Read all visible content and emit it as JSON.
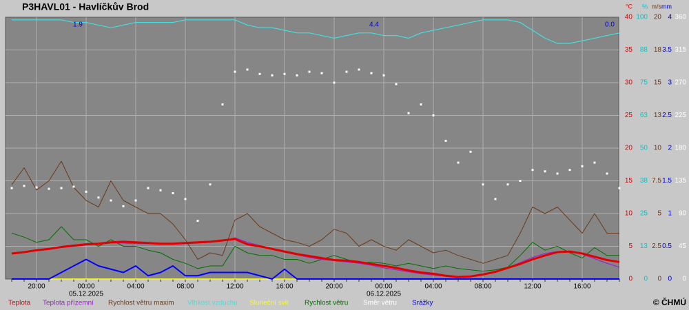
{
  "chart_data": {
    "type": "line",
    "title": "P3HAVL01 - Havlíčkův Brod",
    "credit": "© ČHMÚ",
    "grid": true,
    "categories": [
      null,
      null,
      "20:00",
      null,
      null,
      null,
      "00:00",
      null,
      null,
      null,
      "04:00",
      null,
      null,
      null,
      "08:00",
      null,
      null,
      null,
      "12:00",
      null,
      null,
      null,
      "16:00",
      null,
      null,
      null,
      "20:00",
      null,
      null,
      null,
      "00:00",
      null,
      null,
      null,
      "04:00",
      null,
      null,
      null,
      "08:00",
      null,
      null,
      null,
      "12:00",
      null,
      null,
      null,
      "16:00",
      null,
      null,
      null
    ],
    "x_dates": [
      null,
      null,
      null,
      null,
      null,
      null,
      "05.12.2025",
      null,
      null,
      null,
      null,
      null,
      null,
      null,
      null,
      null,
      null,
      null,
      null,
      null,
      null,
      null,
      null,
      null,
      null,
      null,
      null,
      null,
      null,
      null,
      "06.12.2025",
      null,
      null,
      null,
      null,
      null,
      null,
      null,
      null,
      null,
      null,
      null,
      null,
      null,
      null,
      null,
      null,
      null,
      null,
      null
    ],
    "annotations": [
      "1.9",
      "4.4",
      "0.0"
    ],
    "axes": [
      {
        "label": "°C",
        "color": "#e00000",
        "lim": [
          0,
          40
        ],
        "ticks": [
          0,
          5,
          10,
          15,
          20,
          25,
          30,
          35,
          40
        ]
      },
      {
        "label": "%",
        "color": "#00c8c8",
        "lim": [
          0,
          100
        ],
        "ticks": [
          0,
          {
            "value": 12.5,
            "label": "13"
          },
          25,
          {
            "value": 37.5,
            "label": "38"
          },
          50,
          {
            "value": 62.5,
            "label": "63"
          },
          75,
          {
            "value": 87.5,
            "label": "88"
          },
          100
        ]
      },
      {
        "label": "m/s",
        "color": "#6b3a1a",
        "lim": [
          0,
          20
        ],
        "ticks": [
          0,
          2.5,
          5,
          7.5,
          10,
          {
            "value": 12.5,
            "label": "13"
          },
          15,
          {
            "value": 17.5,
            "label": "18"
          },
          20
        ]
      },
      {
        "label": "mm",
        "color": "#0000d0",
        "lim": [
          0,
          4
        ],
        "ticks": [
          0,
          0.5,
          1,
          1.5,
          2,
          2.5,
          3,
          3.5,
          4
        ]
      },
      {
        "label": null,
        "color": "#ffffff",
        "lim": [
          0,
          360
        ],
        "ticks": [
          0,
          45,
          90,
          135,
          180,
          225,
          270,
          315,
          360
        ]
      }
    ],
    "series": [
      {
        "name": "Sluneční svit",
        "color": "#ffff00",
        "axis": 1,
        "marker": "line",
        "width": 1.5,
        "values": [
          0,
          0,
          0,
          0,
          0,
          0,
          0,
          0,
          0,
          0,
          0,
          0,
          0,
          0,
          0,
          0,
          0,
          0,
          0,
          0,
          0,
          0,
          0,
          0,
          0,
          0,
          0,
          0,
          0,
          0,
          0,
          0,
          0,
          0,
          0,
          0,
          0,
          0,
          0,
          0,
          0,
          0,
          0,
          0,
          0,
          0,
          0,
          0,
          0,
          0
        ]
      },
      {
        "name": "Vlhkost vzduchu",
        "color": "#40e0e0",
        "axis": 1,
        "marker": "line",
        "width": 1.2,
        "values": [
          99,
          99,
          99,
          99,
          99,
          98,
          98,
          97,
          96,
          97,
          98,
          98,
          98,
          98,
          99,
          99,
          99,
          99,
          99,
          97,
          96,
          96,
          95,
          94,
          94,
          93,
          92,
          93,
          94,
          94,
          93,
          93,
          92,
          94,
          95,
          96,
          97,
          98,
          99,
          99,
          99,
          98,
          95,
          92,
          90,
          90,
          91,
          92,
          93,
          94
        ]
      },
      {
        "name": "Rychlost větru maxim",
        "color": "#6b3a1a",
        "axis": 2,
        "marker": "line",
        "width": 1,
        "values": [
          7.2,
          8.5,
          6.8,
          7.5,
          9.0,
          7.0,
          6.0,
          5.5,
          7.5,
          6.0,
          5.5,
          5.0,
          5.0,
          4.2,
          3.0,
          1.5,
          2.0,
          1.8,
          4.5,
          5.0,
          4.0,
          3.5,
          3.0,
          2.8,
          2.5,
          3.0,
          3.8,
          3.5,
          2.5,
          3.0,
          2.5,
          2.2,
          3.0,
          2.5,
          2.0,
          2.2,
          1.8,
          1.5,
          1.2,
          1.5,
          1.8,
          3.5,
          5.5,
          5.0,
          5.5,
          4.5,
          3.5,
          5.0,
          3.5,
          3.5
        ]
      },
      {
        "name": "Rychlost větru",
        "color": "#007000",
        "axis": 2,
        "marker": "line",
        "width": 1,
        "values": [
          3.5,
          3.2,
          2.8,
          3.0,
          4.0,
          3.0,
          3.0,
          2.5,
          3.0,
          2.5,
          2.5,
          2.2,
          2.0,
          1.5,
          1.2,
          0.8,
          1.0,
          1.0,
          2.5,
          2.0,
          1.8,
          1.8,
          1.5,
          1.5,
          1.2,
          1.5,
          1.8,
          1.5,
          1.2,
          1.3,
          1.2,
          1.0,
          1.2,
          1.0,
          0.8,
          1.0,
          0.8,
          0.7,
          0.6,
          0.7,
          0.9,
          1.8,
          2.8,
          2.2,
          2.5,
          2.0,
          1.6,
          2.4,
          1.8,
          1.8
        ]
      },
      {
        "name": "Teplota přízemní",
        "color": "#a020d0",
        "axis": 0,
        "marker": "line",
        "width": 1.2,
        "values": [
          3.9,
          4.1,
          4.3,
          4.5,
          4.8,
          5.0,
          5.2,
          5.3,
          5.5,
          5.5,
          5.4,
          5.4,
          5.3,
          5.3,
          5.4,
          5.5,
          5.6,
          5.8,
          6.3,
          5.6,
          5.1,
          4.6,
          4.1,
          3.7,
          3.3,
          3.0,
          2.8,
          2.6,
          2.4,
          2.1,
          1.7,
          1.4,
          1.1,
          0.8,
          0.6,
          0.4,
          0.2,
          0.3,
          0.6,
          1.0,
          1.7,
          2.5,
          3.3,
          3.9,
          4.2,
          4.2,
          3.8,
          3.1,
          2.4,
          1.8
        ]
      },
      {
        "name": "Teplota",
        "color": "#e00000",
        "axis": 0,
        "marker": "line",
        "width": 3,
        "values": [
          3.9,
          4.1,
          4.4,
          4.6,
          4.9,
          5.1,
          5.3,
          5.4,
          5.6,
          5.7,
          5.6,
          5.5,
          5.4,
          5.4,
          5.5,
          5.6,
          5.7,
          5.9,
          6.1,
          5.3,
          5.0,
          4.6,
          4.2,
          3.8,
          3.5,
          3.2,
          2.9,
          2.8,
          2.6,
          2.3,
          2.0,
          1.7,
          1.3,
          1.0,
          0.8,
          0.5,
          0.3,
          0.4,
          0.7,
          1.1,
          1.7,
          2.3,
          3.0,
          3.6,
          4.1,
          4.2,
          3.9,
          3.4,
          2.9,
          2.6
        ]
      },
      {
        "name": "Směr větru",
        "color": "#ffffff",
        "axis": 4,
        "marker": "dots",
        "width": 1,
        "values": [
          125,
          128,
          126,
          124,
          125,
          127,
          120,
          112,
          108,
          100,
          108,
          125,
          122,
          118,
          110,
          80,
          130,
          240,
          285,
          288,
          282,
          280,
          282,
          280,
          285,
          283,
          270,
          285,
          288,
          283,
          280,
          268,
          228,
          240,
          225,
          190,
          160,
          175,
          130,
          110,
          130,
          135,
          150,
          148,
          145,
          150,
          155,
          160,
          145,
          125
        ]
      },
      {
        "name": "Srážky",
        "color": "#0000ff",
        "axis": 3,
        "marker": "line",
        "width": 2,
        "values": [
          0,
          0,
          0,
          0,
          0.1,
          0.2,
          0.3,
          0.2,
          0.15,
          0.1,
          0.2,
          0.05,
          0.1,
          0.2,
          0.05,
          0.05,
          0.1,
          0.1,
          0.1,
          0.1,
          0.05,
          0,
          0.15,
          0,
          0,
          0,
          0,
          0,
          0,
          0,
          0,
          0,
          0,
          0,
          0,
          0,
          0,
          0,
          0,
          0,
          0,
          0,
          0,
          0,
          0,
          0,
          0,
          0,
          0,
          0
        ]
      }
    ],
    "legend": [
      "Teplota",
      "Teplota přízemní",
      "Rychlost větru maxim",
      "Vlhkost vzduchu",
      "Sluneční svit",
      "Rychlost větru",
      "Směr větru",
      "Srážky"
    ]
  }
}
